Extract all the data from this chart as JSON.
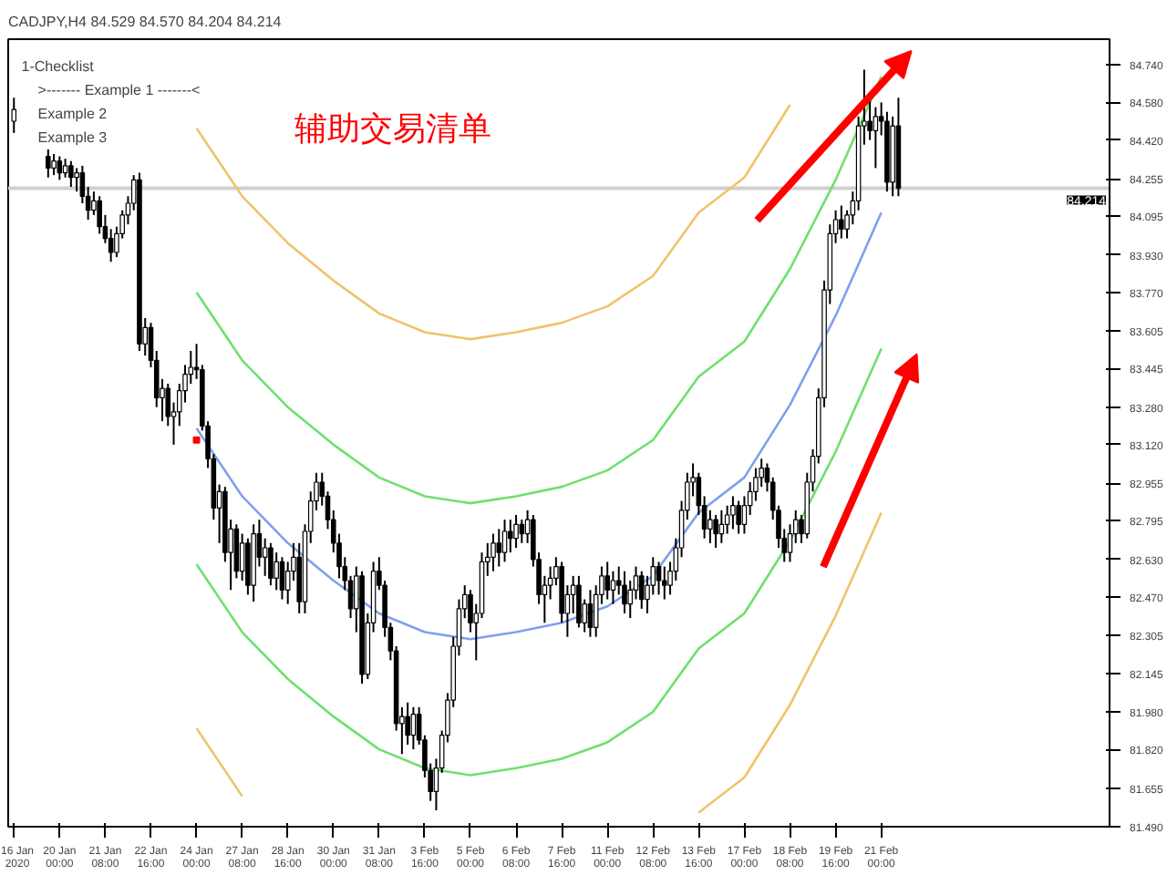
{
  "chart_data": {
    "type": "candlestick",
    "title": "CADJPY,H4 84.529 84.570 84.204 84.214",
    "annotations": [
      "辅助交易清单",
      "1-Checklist",
      ">------- Example 1 -------<",
      "Example 2",
      "Example 3"
    ],
    "categories": [
      "16 Jan 2020",
      null,
      null,
      null,
      null,
      null,
      null,
      null,
      "20 Jan 00:00",
      null,
      null,
      null,
      null,
      null,
      null,
      null,
      "21 Jan 08:00",
      null,
      null,
      null,
      null,
      null,
      null,
      null,
      "22 Jan 16:00",
      null,
      null,
      null,
      null,
      null,
      null,
      null,
      "24 Jan 00:00",
      null,
      null,
      null,
      null,
      null,
      null,
      null,
      "27 Jan 08:00",
      null,
      null,
      null,
      null,
      null,
      null,
      null,
      "28 Jan 16:00",
      null,
      null,
      null,
      null,
      null,
      null,
      null,
      "30 Jan 00:00",
      null,
      null,
      null,
      null,
      null,
      null,
      null,
      "31 Jan 08:00",
      null,
      null,
      null,
      null,
      null,
      null,
      null,
      "3 Feb 16:00",
      null,
      null,
      null,
      null,
      null,
      null,
      null,
      "5 Feb 00:00",
      null,
      null,
      null,
      null,
      null,
      null,
      null,
      "6 Feb 08:00",
      null,
      null,
      null,
      null,
      null,
      null,
      null,
      "7 Feb 16:00",
      null,
      null,
      null,
      null,
      null,
      null,
      null,
      "11 Feb 00:00",
      null,
      null,
      null,
      null,
      null,
      null,
      null,
      "12 Feb 08:00",
      null,
      null,
      null,
      null,
      null,
      null,
      null,
      "13 Feb 16:00",
      null,
      null,
      null,
      null,
      null,
      null,
      null,
      "17 Feb 00:00",
      null,
      null,
      null,
      null,
      null,
      null,
      null,
      "18 Feb 08:00",
      null,
      null,
      null,
      null,
      null,
      null,
      null,
      "19 Feb 16:00",
      null,
      null,
      null,
      null,
      null,
      null,
      null,
      "21 Feb 00:00",
      null,
      null,
      null,
      null,
      null,
      null,
      null,
      null,
      null,
      null,
      null,
      null,
      null,
      null,
      null,
      null,
      null,
      null,
      null,
      null,
      null,
      null,
      null,
      null,
      null,
      null,
      null,
      null,
      null,
      null,
      null,
      null,
      null,
      null,
      null,
      null,
      null,
      null,
      null
    ],
    "ohlc": [
      [
        84.5,
        84.6,
        84.45,
        84.55
      ],
      null,
      null,
      null,
      null,
      null,
      [
        84.35,
        84.38,
        84.26,
        84.3
      ],
      [
        84.3,
        84.36,
        84.27,
        84.33
      ],
      [
        84.33,
        84.35,
        84.25,
        84.28
      ],
      [
        84.28,
        84.34,
        84.26,
        84.31
      ],
      [
        84.31,
        84.33,
        84.22,
        84.26
      ],
      [
        84.26,
        84.3,
        84.2,
        84.28
      ],
      [
        84.28,
        84.31,
        84.15,
        84.18
      ],
      [
        84.18,
        84.22,
        84.08,
        84.12
      ],
      [
        84.12,
        84.2,
        84.1,
        84.16
      ],
      [
        84.16,
        84.18,
        84.02,
        84.05
      ],
      [
        84.05,
        84.1,
        83.98,
        84.0
      ],
      [
        84.0,
        84.04,
        83.9,
        83.94
      ],
      [
        83.94,
        84.05,
        83.92,
        84.02
      ],
      [
        84.02,
        84.12,
        84.0,
        84.1
      ],
      [
        84.1,
        84.18,
        84.06,
        84.15
      ],
      [
        84.15,
        84.27,
        84.12,
        84.25
      ],
      [
        84.25,
        84.28,
        83.52,
        83.55
      ],
      [
        83.55,
        83.66,
        83.5,
        83.62
      ],
      [
        83.62,
        83.64,
        83.45,
        83.48
      ],
      [
        83.48,
        83.52,
        83.28,
        83.32
      ],
      [
        83.32,
        83.4,
        83.22,
        83.36
      ],
      [
        83.36,
        83.38,
        83.2,
        83.24
      ],
      [
        83.24,
        83.3,
        83.12,
        83.26
      ],
      [
        83.26,
        83.38,
        83.2,
        83.35
      ],
      [
        83.35,
        83.46,
        83.3,
        83.42
      ],
      [
        83.42,
        83.52,
        83.38,
        83.45
      ],
      [
        83.45,
        83.55,
        83.4,
        83.44
      ],
      [
        83.44,
        83.46,
        83.18,
        83.2
      ],
      [
        83.2,
        83.22,
        83.02,
        83.06
      ],
      [
        83.06,
        83.08,
        82.8,
        82.85
      ],
      [
        82.85,
        82.95,
        82.7,
        82.92
      ],
      [
        82.92,
        82.94,
        82.62,
        82.66
      ],
      [
        82.66,
        82.8,
        82.5,
        82.76
      ],
      [
        82.76,
        82.78,
        82.55,
        82.58
      ],
      [
        82.58,
        82.74,
        82.54,
        82.7
      ],
      [
        82.7,
        82.72,
        82.48,
        82.52
      ],
      [
        82.52,
        82.78,
        82.45,
        82.74
      ],
      [
        82.74,
        82.8,
        82.6,
        82.64
      ],
      [
        82.64,
        82.72,
        82.56,
        82.68
      ],
      [
        82.68,
        82.7,
        82.52,
        82.55
      ],
      [
        82.55,
        82.66,
        82.5,
        82.62
      ],
      [
        82.62,
        82.64,
        82.46,
        82.5
      ],
      [
        82.5,
        82.62,
        82.44,
        82.58
      ],
      [
        82.58,
        82.7,
        82.54,
        82.64
      ],
      [
        82.64,
        82.7,
        82.4,
        82.45
      ],
      [
        82.45,
        82.78,
        82.4,
        82.75
      ],
      [
        82.75,
        82.92,
        82.7,
        82.88
      ],
      [
        82.88,
        83.0,
        82.84,
        82.96
      ],
      [
        82.96,
        83.0,
        82.86,
        82.9
      ],
      [
        82.9,
        82.92,
        82.76,
        82.8
      ],
      [
        82.8,
        82.84,
        82.66,
        82.7
      ],
      [
        82.7,
        82.74,
        82.55,
        82.6
      ],
      [
        82.6,
        82.64,
        82.5,
        82.54
      ],
      [
        82.54,
        82.56,
        82.38,
        82.42
      ],
      [
        82.42,
        82.6,
        82.32,
        82.56
      ],
      [
        82.56,
        82.58,
        82.1,
        82.14
      ],
      [
        82.14,
        82.4,
        82.12,
        82.36
      ],
      [
        82.36,
        82.62,
        82.32,
        82.58
      ],
      [
        82.58,
        82.64,
        82.5,
        82.52
      ],
      [
        82.52,
        82.54,
        82.3,
        82.34
      ],
      [
        82.34,
        82.36,
        82.2,
        82.24
      ],
      [
        82.24,
        82.26,
        81.9,
        81.93
      ],
      [
        81.93,
        82.0,
        81.8,
        81.96
      ],
      [
        81.96,
        82.02,
        81.84,
        81.88
      ],
      [
        81.88,
        82.0,
        81.82,
        81.97
      ],
      [
        81.97,
        82.0,
        81.84,
        81.86
      ],
      [
        81.86,
        81.88,
        81.7,
        81.73
      ],
      [
        81.73,
        81.76,
        81.6,
        81.64
      ],
      [
        81.64,
        81.78,
        81.56,
        81.74
      ],
      [
        81.74,
        81.9,
        81.72,
        81.88
      ],
      [
        81.88,
        82.06,
        81.85,
        82.03
      ],
      [
        82.03,
        82.3,
        82.0,
        82.26
      ],
      [
        82.26,
        82.46,
        82.22,
        82.42
      ],
      [
        82.42,
        82.52,
        82.38,
        82.48
      ],
      [
        82.48,
        82.5,
        82.32,
        82.36
      ],
      [
        82.36,
        82.44,
        82.2,
        82.4
      ],
      [
        82.4,
        82.66,
        82.38,
        82.62
      ],
      [
        82.62,
        82.7,
        82.56,
        82.64
      ],
      [
        82.64,
        82.74,
        82.58,
        82.7
      ],
      [
        82.7,
        82.76,
        82.6,
        82.66
      ],
      [
        82.66,
        82.8,
        82.62,
        82.75
      ],
      [
        82.75,
        82.8,
        82.66,
        82.72
      ],
      [
        82.72,
        82.82,
        82.68,
        82.78
      ],
      [
        82.78,
        82.8,
        82.7,
        82.74
      ],
      [
        82.74,
        82.84,
        82.7,
        82.8
      ],
      [
        82.8,
        82.82,
        82.6,
        82.63
      ],
      [
        82.63,
        82.66,
        82.44,
        82.48
      ],
      [
        82.48,
        82.56,
        82.36,
        82.52
      ],
      [
        82.52,
        82.6,
        82.46,
        82.55
      ],
      [
        82.55,
        82.64,
        82.52,
        82.6
      ],
      [
        82.6,
        82.62,
        82.36,
        82.4
      ],
      [
        82.4,
        82.52,
        82.3,
        82.48
      ],
      [
        82.48,
        82.56,
        82.4,
        82.52
      ],
      [
        82.52,
        82.56,
        82.34,
        82.36
      ],
      [
        82.36,
        82.46,
        82.32,
        82.44
      ],
      [
        82.44,
        82.5,
        82.3,
        82.34
      ],
      [
        82.34,
        82.52,
        82.3,
        82.48
      ],
      [
        82.48,
        82.6,
        82.44,
        82.56
      ],
      [
        82.56,
        82.62,
        82.46,
        82.5
      ],
      [
        82.5,
        82.58,
        82.44,
        82.54
      ],
      [
        82.54,
        82.6,
        82.48,
        82.52
      ],
      [
        82.52,
        82.58,
        82.4,
        82.44
      ],
      [
        82.44,
        82.54,
        82.38,
        82.5
      ],
      [
        82.5,
        82.6,
        82.46,
        82.56
      ],
      [
        82.56,
        82.58,
        82.42,
        82.46
      ],
      [
        82.46,
        82.56,
        82.4,
        82.52
      ],
      [
        82.52,
        82.64,
        82.48,
        82.6
      ],
      [
        82.6,
        82.62,
        82.48,
        82.54
      ],
      [
        82.54,
        82.6,
        82.46,
        82.52
      ],
      [
        82.52,
        82.62,
        82.48,
        82.58
      ],
      [
        82.58,
        82.72,
        82.54,
        82.68
      ],
      [
        82.68,
        82.88,
        82.64,
        82.84
      ],
      [
        82.84,
        83.0,
        82.8,
        82.96
      ],
      [
        82.96,
        83.04,
        82.9,
        82.98
      ],
      [
        82.98,
        83.0,
        82.82,
        82.86
      ],
      [
        82.86,
        82.9,
        82.72,
        82.76
      ],
      [
        82.76,
        82.84,
        82.7,
        82.8
      ],
      [
        82.8,
        82.82,
        82.68,
        82.74
      ],
      [
        82.74,
        82.84,
        82.7,
        82.78
      ],
      [
        82.78,
        82.86,
        82.74,
        82.82
      ],
      [
        82.82,
        82.9,
        82.76,
        82.86
      ],
      [
        82.86,
        82.88,
        82.74,
        82.78
      ],
      [
        82.78,
        82.9,
        82.74,
        82.86
      ],
      [
        82.86,
        82.96,
        82.82,
        82.92
      ],
      [
        82.92,
        83.02,
        82.88,
        82.98
      ],
      [
        82.98,
        83.06,
        82.94,
        83.02
      ],
      [
        83.02,
        83.04,
        82.92,
        82.96
      ],
      [
        82.96,
        82.98,
        82.8,
        82.84
      ],
      [
        82.84,
        82.86,
        82.68,
        82.72
      ],
      [
        82.72,
        82.76,
        82.62,
        82.66
      ],
      [
        82.66,
        82.78,
        82.62,
        82.74
      ],
      [
        82.74,
        82.84,
        82.7,
        82.8
      ],
      [
        82.8,
        82.82,
        82.7,
        82.74
      ],
      [
        82.74,
        83.0,
        82.72,
        82.96
      ],
      [
        82.96,
        83.1,
        82.92,
        83.07
      ],
      [
        83.07,
        83.36,
        83.04,
        83.32
      ],
      [
        83.32,
        83.82,
        83.28,
        83.78
      ],
      [
        83.78,
        84.06,
        83.72,
        84.02
      ],
      [
        84.02,
        84.12,
        83.98,
        84.08
      ],
      [
        84.08,
        84.14,
        84.0,
        84.04
      ],
      [
        84.04,
        84.12,
        84.0,
        84.1
      ],
      [
        84.1,
        84.2,
        84.06,
        84.16
      ],
      [
        84.16,
        84.52,
        84.12,
        84.48
      ],
      [
        84.48,
        84.72,
        84.4,
        84.5
      ],
      [
        84.5,
        84.6,
        84.42,
        84.46
      ],
      [
        84.46,
        84.56,
        84.3,
        84.52
      ],
      [
        84.52,
        84.58,
        84.44,
        84.5
      ],
      [
        84.5,
        84.54,
        84.2,
        84.24
      ],
      [
        84.24,
        84.52,
        84.18,
        84.48
      ],
      [
        84.48,
        84.6,
        84.18,
        84.214
      ],
      null,
      null,
      null,
      null,
      null,
      null,
      null,
      null,
      null,
      null,
      null,
      null,
      null,
      null,
      null,
      null,
      null,
      null,
      null,
      null,
      null,
      null,
      null,
      null,
      null,
      null,
      null,
      null,
      null,
      null,
      null,
      null,
      null,
      null,
      null,
      null
    ],
    "ylim": [
      81.49,
      84.85
    ],
    "yticks": [
      {
        "value": 84.74,
        "label": "84.740"
      },
      {
        "value": 84.58,
        "label": "84.580"
      },
      {
        "value": 84.42,
        "label": "84.420"
      },
      84.255,
      84.095,
      {
        "value": 83.93,
        "label": "83.930"
      },
      {
        "value": 83.77,
        "label": "83.770"
      },
      83.605,
      83.445,
      {
        "value": 83.28,
        "label": "83.280"
      },
      {
        "value": 83.12,
        "label": "83.120"
      },
      82.955,
      82.795,
      {
        "value": 82.63,
        "label": "82.630"
      },
      {
        "value": 82.47,
        "label": "82.470"
      },
      82.305,
      82.145,
      {
        "value": 81.98,
        "label": "81.980"
      },
      {
        "value": 81.82,
        "label": "81.820"
      },
      81.655,
      {
        "value": 81.49,
        "label": "81.490"
      }
    ],
    "grid": false,
    "ref_lines": [
      {
        "axis": "y",
        "value": 84.214,
        "label": "84.214",
        "color": "#d0d0d0"
      }
    ],
    "series": [
      {
        "type": "line",
        "color": "#f0c36a",
        "x": [
          "24 Jan 00:00",
          "27 Jan 08:00",
          "28 Jan 16:00",
          "30 Jan 00:00",
          "31 Jan 08:00",
          "3 Feb 16:00",
          "5 Feb 00:00",
          "6 Feb 08:00",
          "7 Feb 16:00",
          "11 Feb 00:00",
          "12 Feb 08:00",
          "13 Feb 16:00",
          "17 Feb 00:00",
          "18 Feb 08:00"
        ],
        "values": [
          84.47,
          84.18,
          83.98,
          83.82,
          83.68,
          83.6,
          83.57,
          83.6,
          83.64,
          83.71,
          83.84,
          84.11,
          84.26,
          84.57
        ]
      },
      {
        "type": "line",
        "color": "#6ee06e",
        "x": [
          "24 Jan 00:00",
          "27 Jan 08:00",
          "28 Jan 16:00",
          "30 Jan 00:00",
          "31 Jan 08:00",
          "3 Feb 16:00",
          "5 Feb 00:00",
          "6 Feb 08:00",
          "7 Feb 16:00",
          "11 Feb 00:00",
          "12 Feb 08:00",
          "13 Feb 16:00",
          "17 Feb 00:00",
          "18 Feb 08:00",
          "19 Feb 16:00",
          "21 Feb 00:00"
        ],
        "values": [
          83.77,
          83.48,
          83.28,
          83.12,
          82.98,
          82.9,
          82.87,
          82.9,
          82.94,
          83.01,
          83.14,
          83.41,
          83.56,
          83.87,
          84.25,
          84.69
        ]
      },
      {
        "type": "line",
        "color": "#7fa0ee",
        "x": [
          "24 Jan 00:00",
          "27 Jan 08:00",
          "28 Jan 16:00",
          "30 Jan 00:00",
          "31 Jan 08:00",
          "3 Feb 16:00",
          "5 Feb 00:00",
          "6 Feb 08:00",
          "7 Feb 16:00",
          "11 Feb 00:00",
          "12 Feb 08:00",
          "13 Feb 16:00",
          "17 Feb 00:00",
          "18 Feb 08:00",
          "19 Feb 16:00",
          "21 Feb 00:00"
        ],
        "values": [
          83.19,
          82.9,
          82.7,
          82.54,
          82.4,
          82.32,
          82.29,
          82.32,
          82.36,
          82.43,
          82.56,
          82.83,
          82.98,
          83.29,
          83.67,
          84.11
        ]
      },
      {
        "type": "line",
        "color": "#6ee06e",
        "x": [
          "24 Jan 00:00",
          "27 Jan 08:00",
          "28 Jan 16:00",
          "30 Jan 00:00",
          "31 Jan 08:00",
          "3 Feb 16:00",
          "5 Feb 00:00",
          "6 Feb 08:00",
          "7 Feb 16:00",
          "11 Feb 00:00",
          "12 Feb 08:00",
          "13 Feb 16:00",
          "17 Feb 00:00",
          "18 Feb 08:00",
          "19 Feb 16:00",
          "21 Feb 00:00"
        ],
        "values": [
          82.61,
          82.32,
          82.12,
          81.96,
          81.82,
          81.74,
          81.71,
          81.74,
          81.78,
          81.85,
          81.98,
          82.25,
          82.4,
          82.71,
          83.09,
          83.53
        ]
      },
      {
        "type": "line",
        "color": "#f0c36a",
        "x": [
          "24 Jan 00:00",
          "27 Jan 08:00"
        ],
        "values": [
          81.91,
          81.62
        ]
      },
      {
        "type": "line",
        "color": "#f0c36a",
        "x": [
          "13 Feb 16:00",
          "17 Feb 00:00",
          "18 Feb 08:00",
          "19 Feb 16:00",
          "21 Feb 00:00"
        ],
        "values": [
          81.55,
          81.7,
          82.01,
          82.39,
          82.83
        ]
      },
      {
        "type": "scatter",
        "marker": "square",
        "color": "#ff0000",
        "x": [
          "24 Jan 00:00"
        ],
        "values": [
          83.14
        ]
      }
    ]
  }
}
